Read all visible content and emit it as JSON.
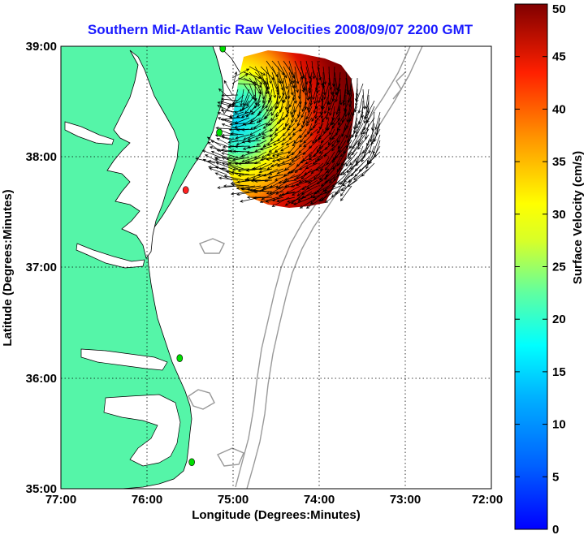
{
  "title": "Southern Mid-Atlantic Raw Velocities 2008/09/07 2200 GMT",
  "xlabel": "Longitude (Degrees:Minutes)",
  "ylabel": "Latitude (Degrees:Minutes)",
  "colorbar_label": "Surface Velocity (cm/s)",
  "x_ticks": [
    "77:00",
    "76:00",
    "75:00",
    "74:00",
    "73:00",
    "72:00"
  ],
  "y_ticks": [
    "39:00",
    "38:00",
    "37:00",
    "36:00",
    "35:00"
  ],
  "colorbar_ticks": [
    "50",
    "45",
    "40",
    "35",
    "30",
    "25",
    "20",
    "15",
    "10",
    "5",
    "0"
  ],
  "colors": {
    "land": "#55f5a8",
    "title": "#1a1aff",
    "station": "#00dd00",
    "station_alt": "#ff2020",
    "bathymetry": "#999999",
    "vector": "#000000"
  },
  "chart_data": {
    "type": "heatmap",
    "title": "Southern Mid-Atlantic Raw Velocities 2008/09/07 2200 GMT",
    "xlabel": "Longitude (Degrees:Minutes)",
    "ylabel": "Latitude (Degrees:Minutes)",
    "xlim": [
      -77,
      -72
    ],
    "ylim": [
      35,
      39
    ],
    "color_scale": {
      "label": "Surface Velocity (cm/s)",
      "range": [
        0,
        50
      ],
      "colormap": "jet"
    },
    "grid": true,
    "field_extent": {
      "lon": [
        -75.35,
        -73.65
      ],
      "lat": [
        37.55,
        38.95
      ]
    },
    "stations": [
      {
        "lon": -75.12,
        "lat": 38.98,
        "color": "#00dd00"
      },
      {
        "lon": -75.16,
        "lat": 38.22,
        "color": "#00dd00"
      },
      {
        "lon": -75.55,
        "lat": 37.7,
        "color": "#ff2020"
      },
      {
        "lon": -75.62,
        "lat": 36.18,
        "color": "#00dd00"
      },
      {
        "lon": -75.48,
        "lat": 35.24,
        "color": "#00dd00"
      }
    ]
  }
}
